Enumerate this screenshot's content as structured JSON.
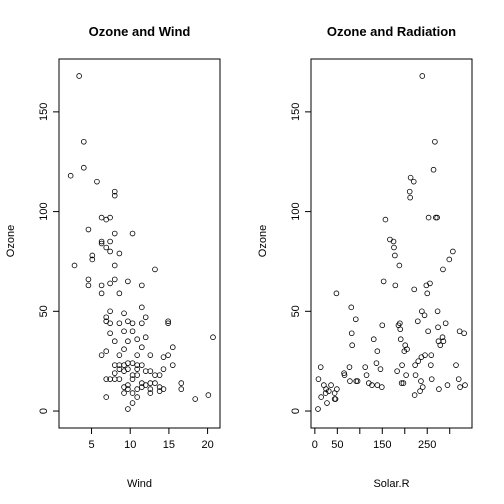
{
  "chart_data": [
    {
      "type": "scatter",
      "title": "Ozone and Wind",
      "xlabel": "Wind",
      "ylabel": "Ozone",
      "xlim": [
        1.7,
        20.7
      ],
      "ylim": [
        -5,
        173
      ],
      "xticks": [
        5,
        10,
        15,
        20
      ],
      "yticks": [
        0,
        50,
        100,
        150
      ],
      "grid": false,
      "points": [
        [
          2.3,
          118
        ],
        [
          2.8,
          73
        ],
        [
          3.4,
          168
        ],
        [
          4.0,
          135
        ],
        [
          4.0,
          122
        ],
        [
          4.6,
          91
        ],
        [
          4.6,
          66
        ],
        [
          4.6,
          63
        ],
        [
          5.1,
          78
        ],
        [
          5.1,
          76
        ],
        [
          5.7,
          115
        ],
        [
          6.3,
          97
        ],
        [
          6.3,
          84
        ],
        [
          6.3,
          85
        ],
        [
          6.3,
          59
        ],
        [
          6.3,
          63
        ],
        [
          6.3,
          28
        ],
        [
          6.9,
          96
        ],
        [
          6.9,
          82
        ],
        [
          6.9,
          45
        ],
        [
          6.9,
          47
        ],
        [
          6.9,
          30
        ],
        [
          6.9,
          16
        ],
        [
          6.9,
          7
        ],
        [
          7.4,
          85
        ],
        [
          7.4,
          80
        ],
        [
          7.4,
          97
        ],
        [
          7.4,
          64
        ],
        [
          7.4,
          50
        ],
        [
          7.4,
          44
        ],
        [
          7.4,
          39
        ],
        [
          7.4,
          16
        ],
        [
          8.0,
          110
        ],
        [
          8.0,
          108
        ],
        [
          8.0,
          89
        ],
        [
          8.0,
          73
        ],
        [
          8.0,
          66
        ],
        [
          8.0,
          35
        ],
        [
          8.0,
          23
        ],
        [
          8.0,
          16
        ],
        [
          8.0,
          19
        ],
        [
          8.6,
          79
        ],
        [
          8.6,
          59
        ],
        [
          8.6,
          44
        ],
        [
          8.6,
          23
        ],
        [
          8.6,
          21
        ],
        [
          8.6,
          16
        ],
        [
          8.6,
          28
        ],
        [
          9.2,
          49
        ],
        [
          9.2,
          40
        ],
        [
          9.2,
          31
        ],
        [
          9.2,
          20
        ],
        [
          9.2,
          23
        ],
        [
          9.2,
          12
        ],
        [
          9.2,
          9
        ],
        [
          9.7,
          65
        ],
        [
          9.7,
          45
        ],
        [
          9.7,
          35
        ],
        [
          9.7,
          24
        ],
        [
          9.7,
          21
        ],
        [
          9.7,
          11
        ],
        [
          9.7,
          13
        ],
        [
          9.7,
          1
        ],
        [
          10.3,
          89
        ],
        [
          10.3,
          44
        ],
        [
          10.3,
          40
        ],
        [
          10.3,
          24
        ],
        [
          10.3,
          18
        ],
        [
          10.3,
          16
        ],
        [
          10.3,
          9
        ],
        [
          10.3,
          4
        ],
        [
          10.9,
          36
        ],
        [
          10.9,
          28
        ],
        [
          10.9,
          23
        ],
        [
          10.9,
          21
        ],
        [
          10.9,
          18
        ],
        [
          10.9,
          11
        ],
        [
          10.9,
          7
        ],
        [
          11.5,
          63
        ],
        [
          11.5,
          52
        ],
        [
          11.5,
          44
        ],
        [
          11.5,
          32
        ],
        [
          11.5,
          23
        ],
        [
          11.5,
          14
        ],
        [
          11.5,
          12
        ],
        [
          12.0,
          47
        ],
        [
          12.0,
          37
        ],
        [
          12.0,
          20
        ],
        [
          12.0,
          13
        ],
        [
          12.6,
          28
        ],
        [
          12.6,
          20
        ],
        [
          12.6,
          14
        ],
        [
          12.6,
          11
        ],
        [
          12.6,
          9
        ],
        [
          13.2,
          71
        ],
        [
          13.2,
          18
        ],
        [
          13.2,
          14
        ],
        [
          13.8,
          18
        ],
        [
          13.8,
          12
        ],
        [
          13.8,
          10
        ],
        [
          14.3,
          27
        ],
        [
          14.3,
          21
        ],
        [
          14.3,
          11
        ],
        [
          14.9,
          45
        ],
        [
          14.9,
          44
        ],
        [
          14.9,
          28
        ],
        [
          15.5,
          32
        ],
        [
          15.5,
          23
        ],
        [
          16.6,
          14
        ],
        [
          16.6,
          11
        ],
        [
          18.4,
          6
        ],
        [
          20.1,
          8
        ],
        [
          20.7,
          37
        ]
      ]
    },
    {
      "type": "scatter",
      "title": "Ozone and Radiation",
      "xlabel": "Solar.R",
      "ylabel": "Ozone",
      "xlim": [
        7,
        334
      ],
      "ylim": [
        -5,
        173
      ],
      "xticks": [
        0,
        50,
        100,
        150,
        200,
        250,
        300
      ],
      "xtick_labels": [
        "0",
        "50",
        "",
        "150",
        "",
        "250",
        ""
      ],
      "yticks": [
        0,
        50,
        100,
        150
      ],
      "grid": false,
      "points": [
        [
          7,
          1
        ],
        [
          8,
          16
        ],
        [
          13,
          22
        ],
        [
          14,
          7
        ],
        [
          20,
          13
        ],
        [
          24,
          9
        ],
        [
          25,
          11
        ],
        [
          27,
          4
        ],
        [
          31,
          10
        ],
        [
          36,
          13
        ],
        [
          44,
          6
        ],
        [
          44,
          9
        ],
        [
          46,
          6
        ],
        [
          48,
          59
        ],
        [
          49,
          11
        ],
        [
          65,
          19
        ],
        [
          66,
          18
        ],
        [
          77,
          22
        ],
        [
          78,
          15
        ],
        [
          81,
          52
        ],
        [
          82,
          39
        ],
        [
          83,
          33
        ],
        [
          91,
          46
        ],
        [
          92,
          15
        ],
        [
          95,
          15
        ],
        [
          112,
          22
        ],
        [
          115,
          18
        ],
        [
          120,
          14
        ],
        [
          127,
          13
        ],
        [
          131,
          36
        ],
        [
          137,
          24
        ],
        [
          139,
          13
        ],
        [
          139,
          30
        ],
        [
          146,
          21
        ],
        [
          149,
          12
        ],
        [
          150,
          43
        ],
        [
          153,
          65
        ],
        [
          157,
          96
        ],
        [
          167,
          86
        ],
        [
          175,
          85
        ],
        [
          176,
          82
        ],
        [
          178,
          78
        ],
        [
          179,
          63
        ],
        [
          183,
          20
        ],
        [
          186,
          43
        ],
        [
          188,
          73
        ],
        [
          189,
          44
        ],
        [
          190,
          41
        ],
        [
          191,
          36
        ],
        [
          193,
          14
        ],
        [
          194,
          23
        ],
        [
          197,
          14
        ],
        [
          199,
          30
        ],
        [
          201,
          33
        ],
        [
          203,
          18
        ],
        [
          205,
          31
        ],
        [
          211,
          110
        ],
        [
          212,
          107
        ],
        [
          213,
          117
        ],
        [
          220,
          115
        ],
        [
          221,
          61
        ],
        [
          222,
          8
        ],
        [
          223,
          23
        ],
        [
          224,
          18
        ],
        [
          229,
          45
        ],
        [
          230,
          25
        ],
        [
          234,
          10
        ],
        [
          236,
          15
        ],
        [
          237,
          27
        ],
        [
          238,
          50
        ],
        [
          239,
          168
        ],
        [
          240,
          12
        ],
        [
          244,
          48
        ],
        [
          245,
          28
        ],
        [
          248,
          63
        ],
        [
          250,
          59
        ],
        [
          252,
          40
        ],
        [
          253,
          97
        ],
        [
          256,
          64
        ],
        [
          258,
          23
        ],
        [
          259,
          28
        ],
        [
          260,
          16
        ],
        [
          264,
          121
        ],
        [
          267,
          135
        ],
        [
          269,
          97
        ],
        [
          272,
          97
        ],
        [
          273,
          50
        ],
        [
          274,
          42
        ],
        [
          275,
          35
        ],
        [
          276,
          11
        ],
        [
          279,
          33
        ],
        [
          284,
          37
        ],
        [
          285,
          71
        ],
        [
          286,
          35
        ],
        [
          291,
          44
        ],
        [
          295,
          13
        ],
        [
          299,
          76
        ],
        [
          307,
          80
        ],
        [
          314,
          23
        ],
        [
          320,
          16
        ],
        [
          322,
          40
        ],
        [
          323,
          12
        ],
        [
          332,
          39
        ],
        [
          334,
          13
        ]
      ]
    }
  ]
}
